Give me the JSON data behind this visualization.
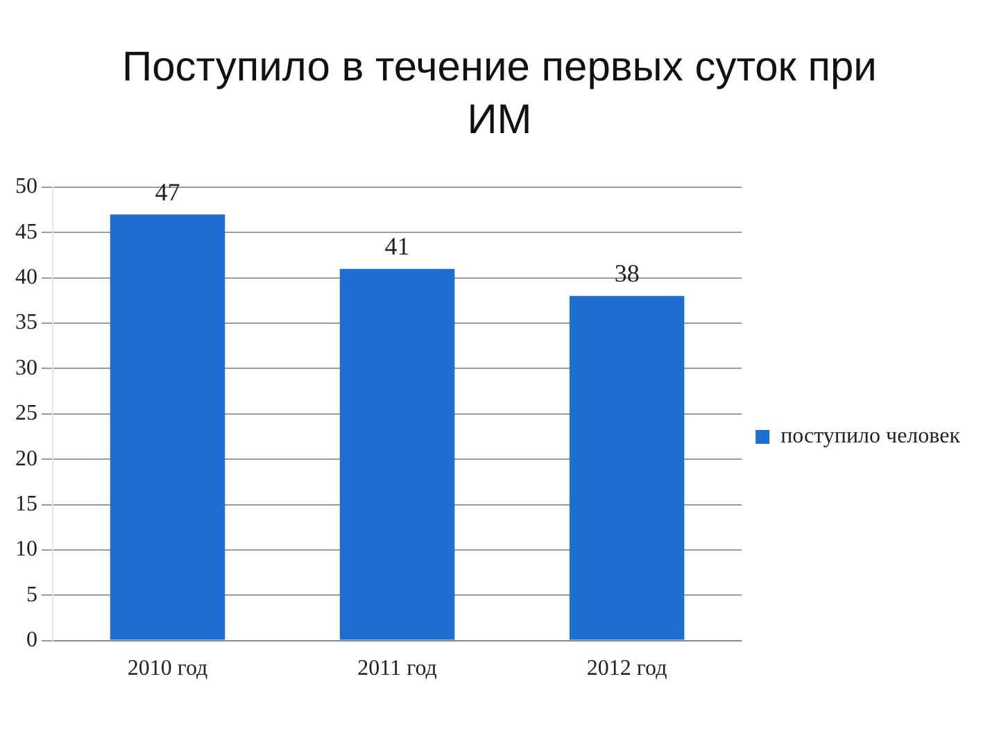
{
  "chart_data": {
    "type": "bar",
    "title": "Поступило в течение первых суток при ИМ",
    "categories": [
      "2010 год",
      "2011 год",
      "2012 год"
    ],
    "series": [
      {
        "name": "поступило человек",
        "color": "#1f6fd0",
        "values": [
          47,
          41,
          38
        ]
      }
    ],
    "ylim": [
      0,
      50
    ],
    "yticks": [
      0,
      5,
      10,
      15,
      20,
      25,
      30,
      35,
      40,
      45,
      50
    ],
    "grid": "y",
    "legend": "right",
    "data_labels": true
  }
}
